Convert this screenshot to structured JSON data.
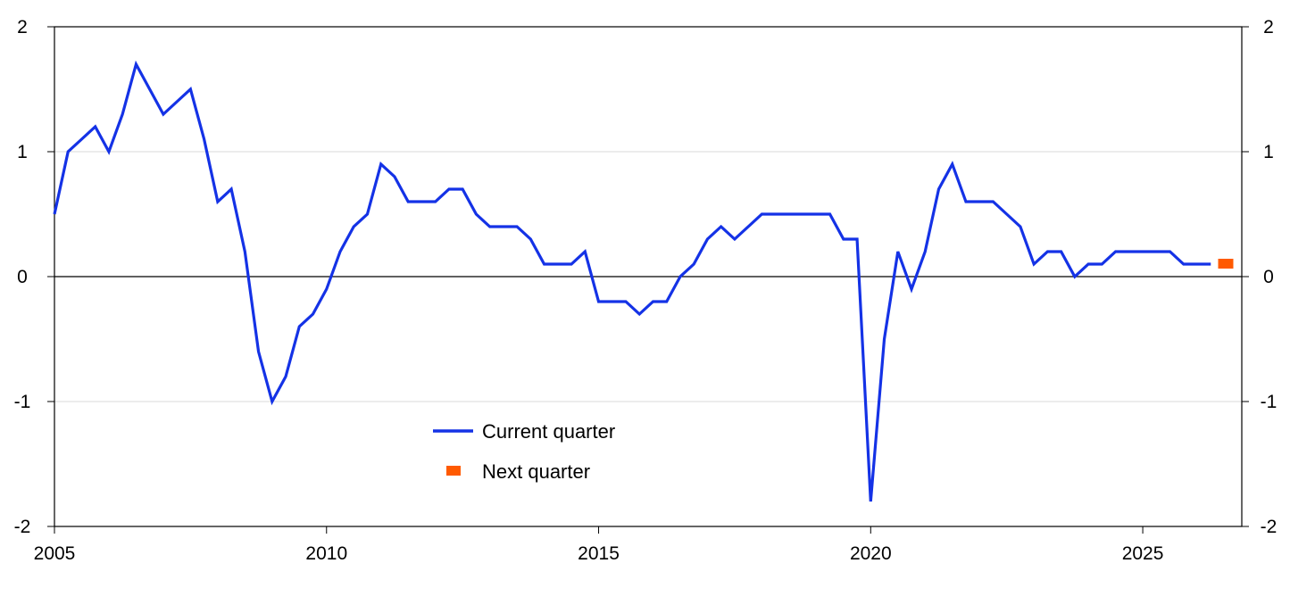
{
  "chart_data": {
    "type": "line",
    "title": "",
    "xlabel": "",
    "ylabel": "",
    "xlim": [
      2005.0,
      2026.82
    ],
    "ylim": [
      -2,
      2
    ],
    "x_ticks": [
      2005,
      2010,
      2015,
      2020,
      2025
    ],
    "x_tick_labels": [
      "2005",
      "2010",
      "2015",
      "2020",
      "2025"
    ],
    "y_ticks": [
      2,
      1,
      0,
      -1,
      -2
    ],
    "y_tick_labels_left": [
      "2",
      "1",
      "0",
      "-1",
      "-2"
    ],
    "y_tick_labels_right": [
      "2",
      "1",
      "0",
      "-1",
      "-2"
    ],
    "grid": true,
    "legend_position": "lower-center",
    "series": [
      {
        "name": "Current quarter",
        "type": "line",
        "color": "#1432e6",
        "x": [
          2005.0,
          2005.25,
          2005.5,
          2005.75,
          2006.0,
          2006.25,
          2006.5,
          2006.75,
          2007.0,
          2007.25,
          2007.5,
          2007.75,
          2008.0,
          2008.25,
          2008.5,
          2008.75,
          2009.0,
          2009.25,
          2009.5,
          2009.75,
          2010.0,
          2010.25,
          2010.5,
          2010.75,
          2011.0,
          2011.25,
          2011.5,
          2011.75,
          2012.0,
          2012.25,
          2012.5,
          2012.75,
          2013.0,
          2013.25,
          2013.5,
          2013.75,
          2014.0,
          2014.25,
          2014.5,
          2014.75,
          2015.0,
          2015.25,
          2015.5,
          2015.75,
          2016.0,
          2016.25,
          2016.5,
          2016.75,
          2017.0,
          2017.25,
          2017.5,
          2017.75,
          2018.0,
          2018.25,
          2018.5,
          2018.75,
          2019.0,
          2019.25,
          2019.5,
          2019.75,
          2020.0,
          2020.25,
          2020.5,
          2020.75,
          2021.0,
          2021.25,
          2021.5,
          2021.75,
          2022.0,
          2022.25,
          2022.5,
          2022.75,
          2023.0,
          2023.25,
          2023.5,
          2023.75,
          2024.0,
          2024.25,
          2024.5,
          2024.75,
          2025.0,
          2025.25,
          2025.5,
          2025.75,
          2026.0,
          2026.25
        ],
        "values": [
          0.5,
          1.0,
          1.1,
          1.2,
          1.0,
          1.3,
          1.7,
          1.5,
          1.3,
          1.4,
          1.5,
          1.1,
          0.6,
          0.7,
          0.2,
          -0.6,
          -1.0,
          -0.8,
          -0.4,
          -0.3,
          -0.1,
          0.2,
          0.4,
          0.5,
          0.9,
          0.8,
          0.6,
          0.6,
          0.6,
          0.7,
          0.7,
          0.5,
          0.4,
          0.4,
          0.4,
          0.3,
          0.1,
          0.1,
          0.1,
          0.2,
          -0.2,
          -0.2,
          -0.2,
          -0.3,
          -0.2,
          -0.2,
          0.0,
          0.1,
          0.3,
          0.4,
          0.3,
          0.4,
          0.5,
          0.5,
          0.5,
          0.5,
          0.5,
          0.5,
          0.3,
          0.3,
          -1.8,
          -0.5,
          0.2,
          -0.1,
          0.2,
          0.7,
          0.9,
          0.6,
          0.6,
          0.6,
          0.5,
          0.4,
          0.1,
          0.2,
          0.2,
          0.0,
          0.1,
          0.1,
          0.2,
          0.2,
          0.2,
          0.2,
          0.2,
          0.1,
          0.1,
          0.1
        ]
      },
      {
        "name": "Next quarter",
        "type": "marker",
        "color": "#ff5a00",
        "x": [
          2026.5
        ],
        "values": [
          0.1
        ]
      }
    ]
  }
}
